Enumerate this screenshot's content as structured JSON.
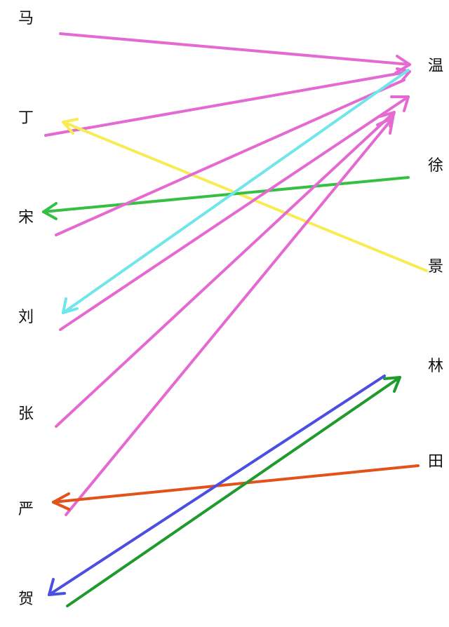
{
  "left_names": [
    "马",
    "丁",
    "宋",
    "刘",
    "张",
    "严",
    "贺"
  ],
  "right_names": [
    "温",
    "徐",
    "景",
    "林",
    "田"
  ],
  "colors": {
    "pink": "#e46ad2",
    "yellow": "#f7ec55",
    "cyan": "#6ee6ea",
    "green": "#35c043",
    "orange": "#e2521b",
    "blue": "#4a4fe2",
    "darkgreen": "#1f9a2c"
  }
}
